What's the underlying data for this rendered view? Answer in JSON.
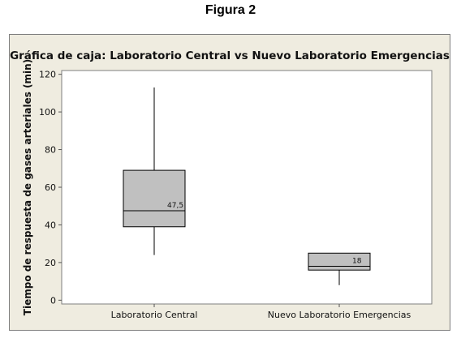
{
  "figure_label": "Figura 2",
  "chart_data": {
    "type": "box",
    "title": "Gráfica de caja: Laboratorio Central vs Nuevo Laboratorio Emergencias",
    "xlabel": "",
    "ylabel": "Tiempo de respuesta de gases arteriales (min)",
    "ylim": [
      -2,
      122
    ],
    "yticks": [
      0,
      20,
      40,
      60,
      80,
      100,
      120
    ],
    "categories": [
      "Laboratorio Central",
      "Nuevo Laboratorio Emergencias"
    ],
    "boxes": [
      {
        "category": "Laboratorio Central",
        "min": 24,
        "q1": 39,
        "median": 47.5,
        "q3": 69,
        "max": 113,
        "median_label": "47,5"
      },
      {
        "category": "Nuevo Laboratorio Emergencias",
        "min": 8,
        "q1": 16,
        "median": 18,
        "q3": 25,
        "max": 25,
        "median_label": "18"
      }
    ],
    "box_color": "#c0c0c0",
    "grid": false
  }
}
